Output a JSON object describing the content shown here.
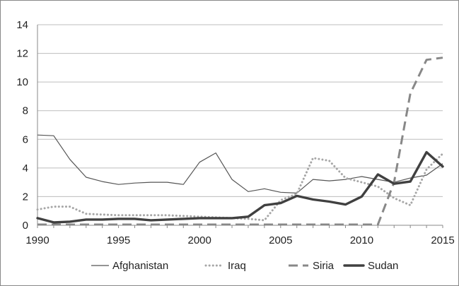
{
  "chart_data": {
    "type": "line",
    "title": "",
    "xlabel": "",
    "ylabel": "",
    "xlim": [
      1990,
      2015
    ],
    "ylim": [
      0,
      14
    ],
    "y_ticks": [
      0,
      2,
      4,
      6,
      8,
      10,
      12,
      14
    ],
    "x_ticks": [
      1990,
      1995,
      2000,
      2005,
      2010,
      2015
    ],
    "grid": "horizontal",
    "legend_position": "bottom",
    "x": [
      1990,
      1991,
      1992,
      1993,
      1994,
      1995,
      1996,
      1997,
      1998,
      1999,
      2000,
      2001,
      2002,
      2003,
      2004,
      2005,
      2006,
      2007,
      2008,
      2009,
      2010,
      2011,
      2012,
      2013,
      2014,
      2015
    ],
    "series": [
      {
        "name": "Afghanistan",
        "color": "#555555",
        "style": "thin",
        "values": [
          6.3,
          6.25,
          4.6,
          3.35,
          3.05,
          2.85,
          2.95,
          3.0,
          3.0,
          2.85,
          4.4,
          5.05,
          3.2,
          2.35,
          2.55,
          2.3,
          2.25,
          3.2,
          3.1,
          3.2,
          3.4,
          3.2,
          3.0,
          3.3,
          3.5,
          4.3
        ]
      },
      {
        "name": "Iraq",
        "color": "#a6a6a6",
        "style": "dotted",
        "values": [
          1.1,
          1.3,
          1.3,
          0.8,
          0.75,
          0.7,
          0.7,
          0.7,
          0.7,
          0.65,
          0.6,
          0.55,
          0.5,
          0.45,
          0.35,
          1.75,
          2.2,
          4.7,
          4.5,
          3.3,
          3.0,
          2.7,
          1.9,
          1.4,
          3.9,
          5.0
        ]
      },
      {
        "name": "Siria",
        "color": "#888888",
        "style": "dashed",
        "values": [
          0.05,
          0.05,
          0.05,
          0.05,
          0.05,
          0.05,
          0.05,
          0.05,
          0.05,
          0.05,
          0.05,
          0.05,
          0.05,
          0.05,
          0.05,
          0.05,
          0.05,
          0.05,
          0.05,
          0.05,
          0.05,
          0.05,
          3.0,
          9.2,
          11.55,
          11.7
        ]
      },
      {
        "name": "Sudan",
        "color": "#404040",
        "style": "thick",
        "values": [
          0.5,
          0.2,
          0.25,
          0.4,
          0.4,
          0.45,
          0.45,
          0.35,
          0.4,
          0.45,
          0.5,
          0.5,
          0.5,
          0.6,
          1.4,
          1.55,
          2.05,
          1.8,
          1.65,
          1.45,
          2.0,
          3.55,
          2.9,
          3.05,
          5.1,
          4.1
        ]
      }
    ]
  }
}
